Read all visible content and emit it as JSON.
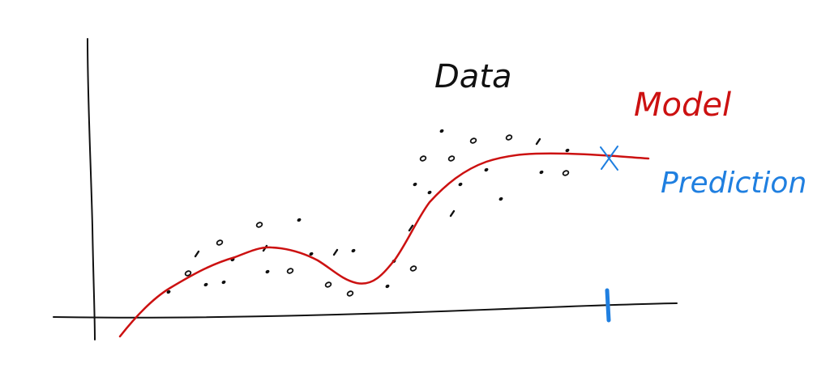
{
  "labels": {
    "data": "Data",
    "model": "Model",
    "prediction": "Prediction"
  },
  "colors": {
    "ink": "#111111",
    "model": "#cc1111",
    "prediction": "#1f7fe0"
  },
  "icons": {
    "prediction_marker": "x-mark-icon",
    "prediction_tick": "tick-mark-icon"
  }
}
